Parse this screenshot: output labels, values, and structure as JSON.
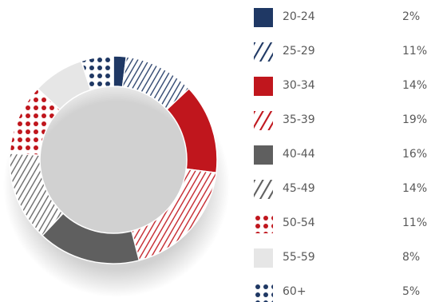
{
  "chart_data": {
    "type": "pie",
    "categories": [
      "20-24",
      "25-29",
      "30-34",
      "35-39",
      "40-44",
      "45-49",
      "50-54",
      "55-59",
      "60+"
    ],
    "values": [
      2,
      11,
      14,
      19,
      16,
      14,
      11,
      8,
      5
    ],
    "value_labels": [
      "2%",
      "11%",
      "14%",
      "19%",
      "16%",
      "14%",
      "11%",
      "8%",
      "5%"
    ],
    "legend_position": "right",
    "series_styles": [
      {
        "fill": "solid",
        "color": "#1f3864"
      },
      {
        "fill": "stripes",
        "color": "#1f3864"
      },
      {
        "fill": "solid",
        "color": "#c0161d"
      },
      {
        "fill": "stripes",
        "color": "#c0161d"
      },
      {
        "fill": "solid",
        "color": "#5f5f5f"
      },
      {
        "fill": "stripes",
        "color": "#5f5f5f"
      },
      {
        "fill": "dots",
        "color": "#c0161d"
      },
      {
        "fill": "solid",
        "color": "#e6e6e6"
      },
      {
        "fill": "dots",
        "color": "#1f3864"
      }
    ]
  }
}
